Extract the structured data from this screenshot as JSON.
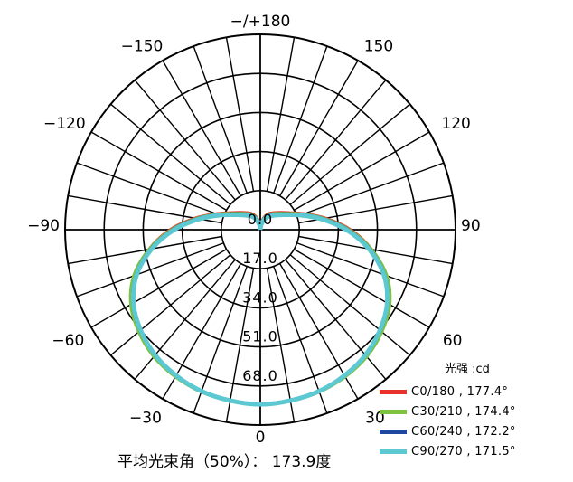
{
  "chart_data": {
    "type": "polar",
    "title": "",
    "angle_labels": [
      {
        "angle": 0,
        "label": "0"
      },
      {
        "angle": 30,
        "label": "30"
      },
      {
        "angle": 60,
        "label": "60"
      },
      {
        "angle": 90,
        "label": "90"
      },
      {
        "angle": 120,
        "label": "120"
      },
      {
        "angle": 150,
        "label": "150"
      },
      {
        "angle": 180,
        "label": "−/+180"
      },
      {
        "angle": -150,
        "label": "−150"
      },
      {
        "angle": -120,
        "label": "−120"
      },
      {
        "angle": -90,
        "label": "−90"
      },
      {
        "angle": -60,
        "label": "−60"
      },
      {
        "angle": -30,
        "label": "−30"
      }
    ],
    "radial_ticks": [
      {
        "value": 0,
        "label": "0.0"
      },
      {
        "value": 17,
        "label": "17.0"
      },
      {
        "value": 34,
        "label": "34.0"
      },
      {
        "value": 51,
        "label": "51.0"
      },
      {
        "value": 68,
        "label": "68.0"
      }
    ],
    "radial_max": 85,
    "angle_step": 10,
    "unit": "光强 :cd",
    "series": [
      {
        "name": "C0/180 , 177.4°",
        "color": "#e8302c",
        "angles": [
          0,
          10,
          20,
          30,
          40,
          50,
          60,
          70,
          80,
          90,
          100,
          110,
          120,
          130,
          140,
          150,
          160,
          170,
          180
        ],
        "values": [
          76,
          75.5,
          75,
          73.5,
          71.5,
          68.5,
          64.5,
          58,
          49,
          39,
          28.5,
          20,
          14.5,
          11.5,
          9.5,
          8,
          6,
          3,
          0
        ]
      },
      {
        "name": "C30/210 , 174.4°",
        "color": "#7cc243",
        "angles": [
          0,
          10,
          20,
          30,
          40,
          50,
          60,
          70,
          80,
          90,
          100,
          110,
          120,
          130,
          140,
          150,
          160,
          170,
          180
        ],
        "values": [
          76,
          75.5,
          75,
          73.8,
          72,
          69,
          65,
          58.5,
          49,
          38.5,
          28,
          19.5,
          14,
          11,
          9,
          7.5,
          5.5,
          2.5,
          0
        ]
      },
      {
        "name": "C60/240 , 172.2°",
        "color": "#2148a0",
        "angles": [
          0,
          10,
          20,
          30,
          40,
          50,
          60,
          70,
          80,
          90,
          100,
          110,
          120,
          130,
          140,
          150,
          160,
          170,
          180
        ],
        "values": [
          76,
          75.5,
          74.8,
          73.3,
          71.2,
          68.2,
          64,
          57.5,
          48.3,
          38,
          27.5,
          19,
          13.5,
          10.5,
          8.5,
          7,
          5,
          2.5,
          0
        ]
      },
      {
        "name": "C90/270 , 171.5°",
        "color": "#5bc8d2",
        "angles": [
          0,
          10,
          20,
          30,
          40,
          50,
          60,
          70,
          80,
          90,
          100,
          110,
          120,
          130,
          140,
          150,
          160,
          170,
          180
        ],
        "values": [
          76,
          75.5,
          74.8,
          73.3,
          71.2,
          68,
          63.8,
          57.3,
          48,
          37.5,
          27,
          18.5,
          13,
          10,
          8,
          6.5,
          4.5,
          2,
          0
        ]
      }
    ]
  },
  "footer": "平均光束角（50%）： 173.9度"
}
